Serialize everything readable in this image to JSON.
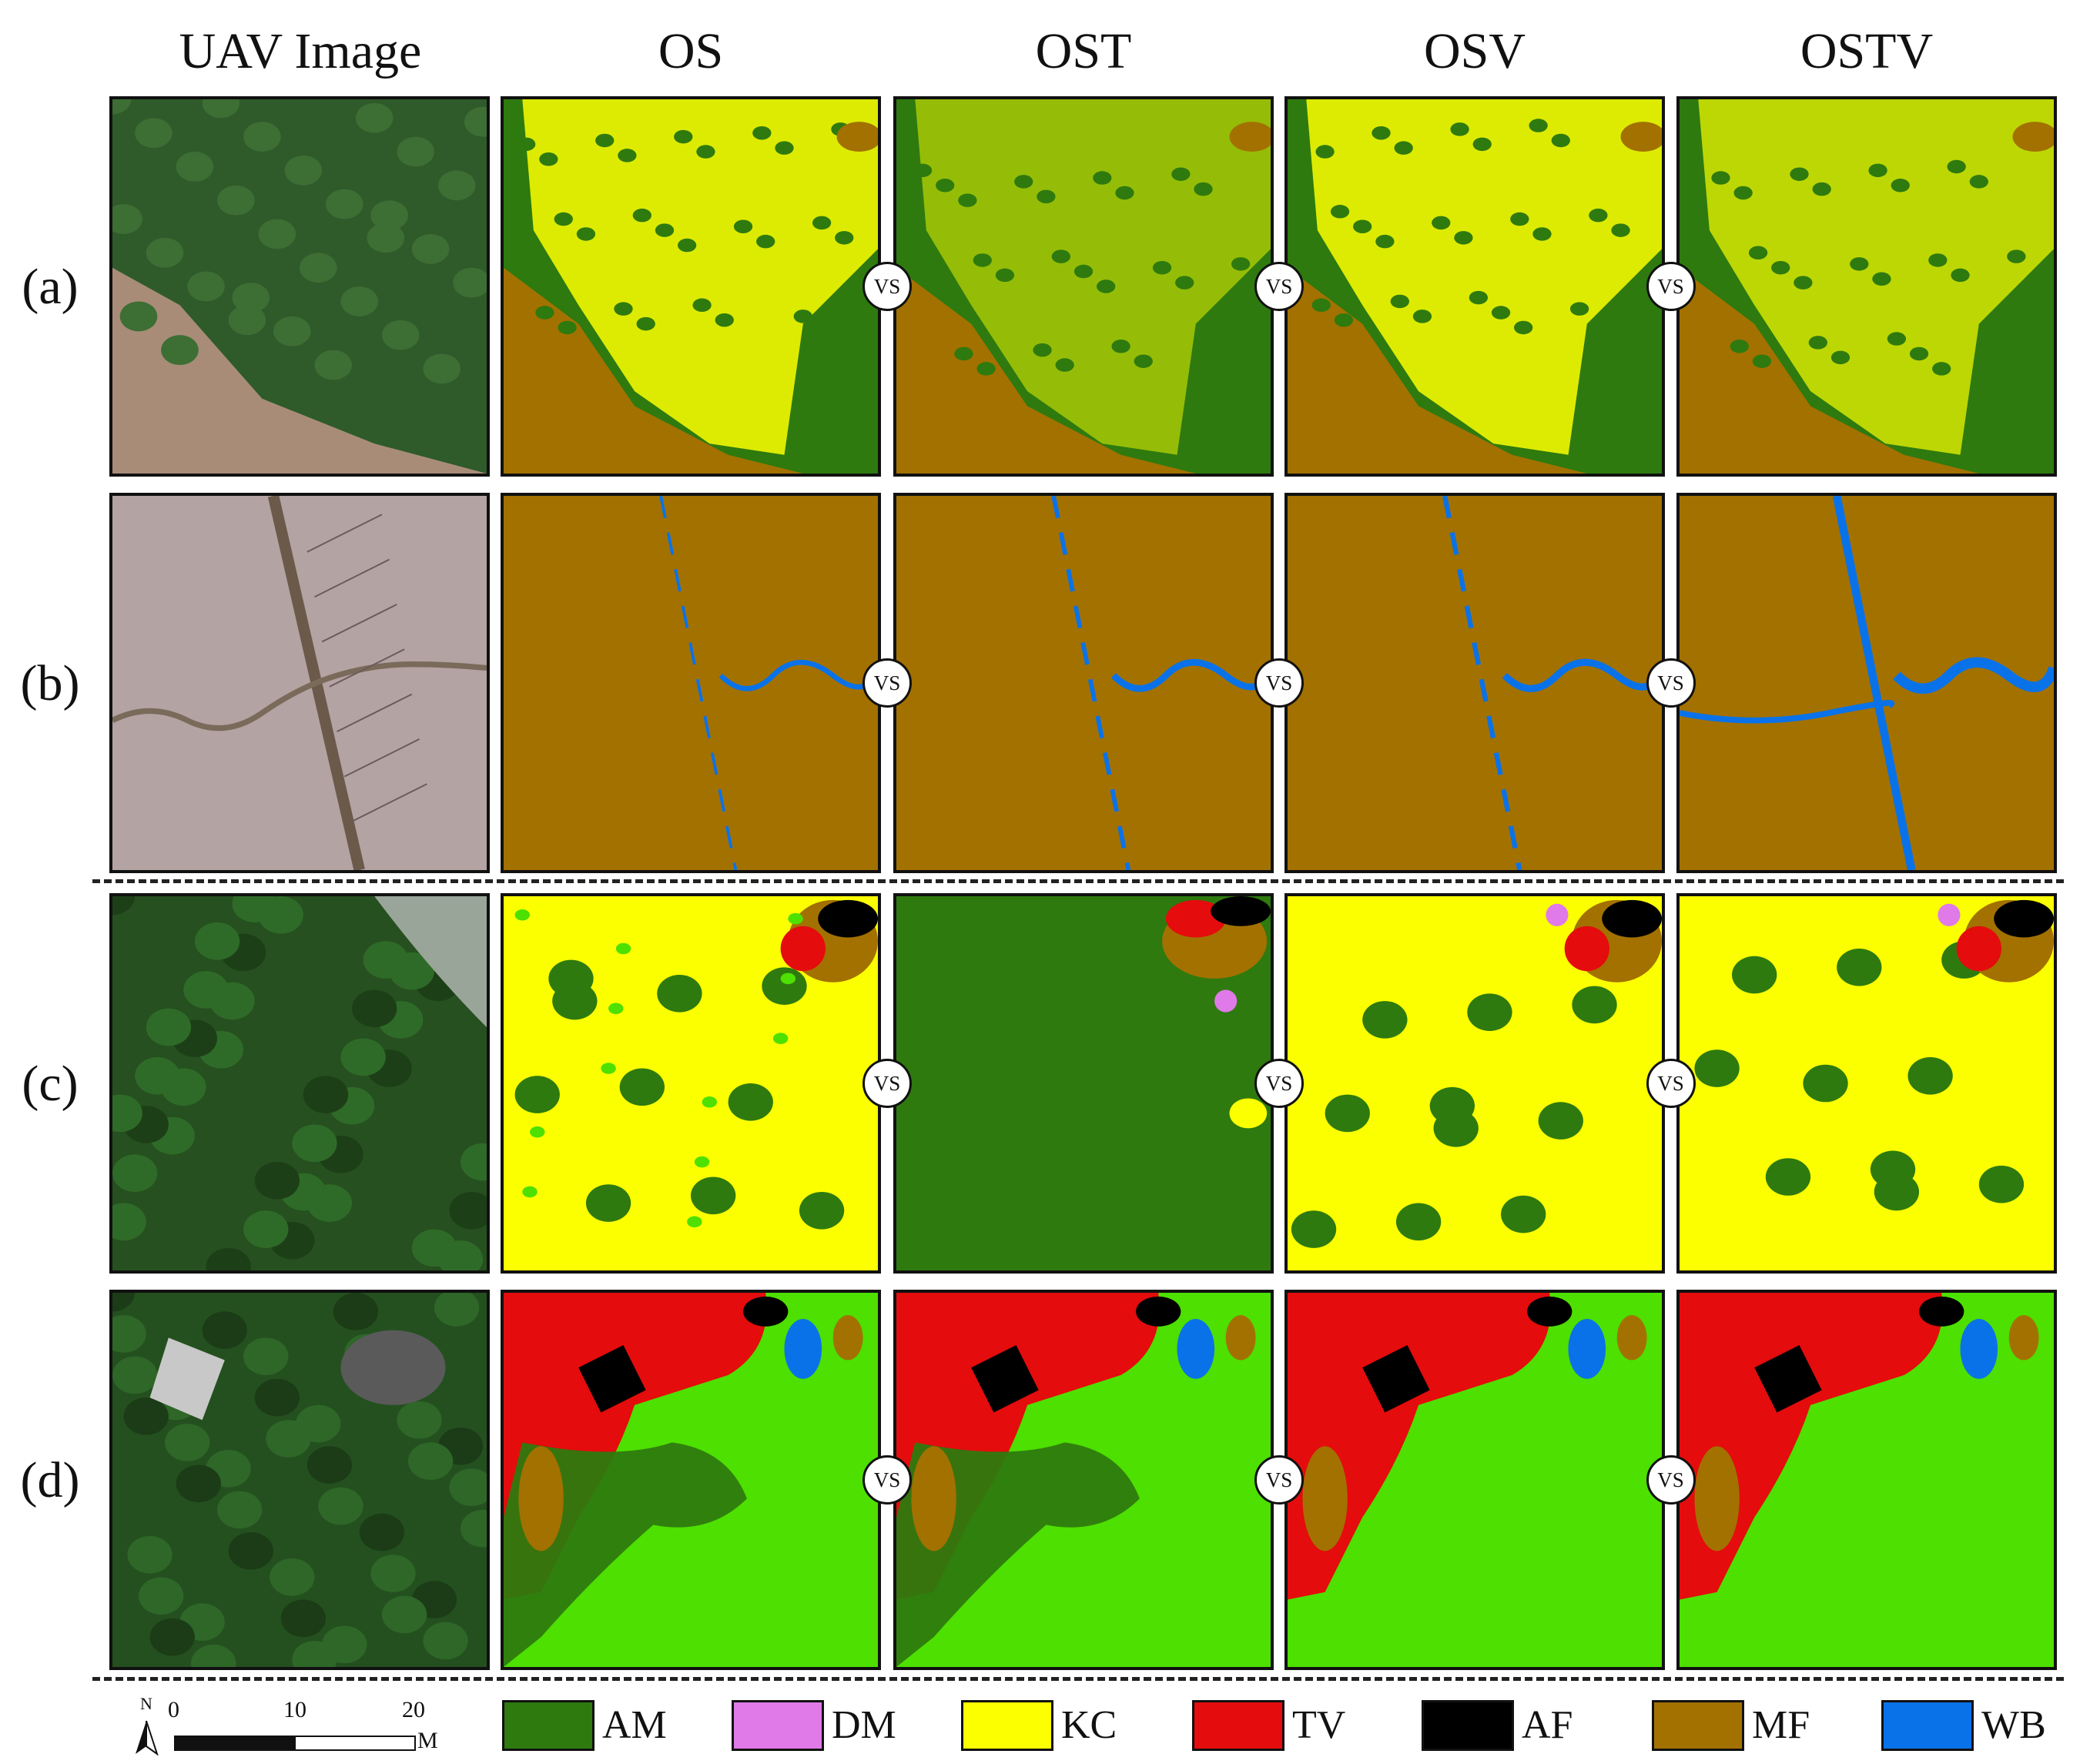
{
  "columns": [
    "UAV Image",
    "OS",
    "OST",
    "OSV",
    "OSTV"
  ],
  "rows": [
    "(a)",
    "(b)",
    "(c)",
    "(d)"
  ],
  "vs_label": "VS",
  "legend": [
    {
      "code": "AM",
      "color": "#2e7a0f"
    },
    {
      "code": "DM",
      "color": "#e07ae8"
    },
    {
      "code": "KC",
      "color": "#fbff00"
    },
    {
      "code": "TV",
      "color": "#e40c0c"
    },
    {
      "code": "AF",
      "color": "#000000"
    },
    {
      "code": "MF",
      "color": "#a37100"
    },
    {
      "code": "WB",
      "color": "#0a72e8"
    }
  ],
  "scale_bar": {
    "north": "N",
    "ticks": [
      "0",
      "10",
      "20"
    ],
    "unit": "M"
  },
  "colors": {
    "lightgreen": "#4de000",
    "mudflat_photo": "#a88c78",
    "forest_photo": "#2f5a2a"
  }
}
